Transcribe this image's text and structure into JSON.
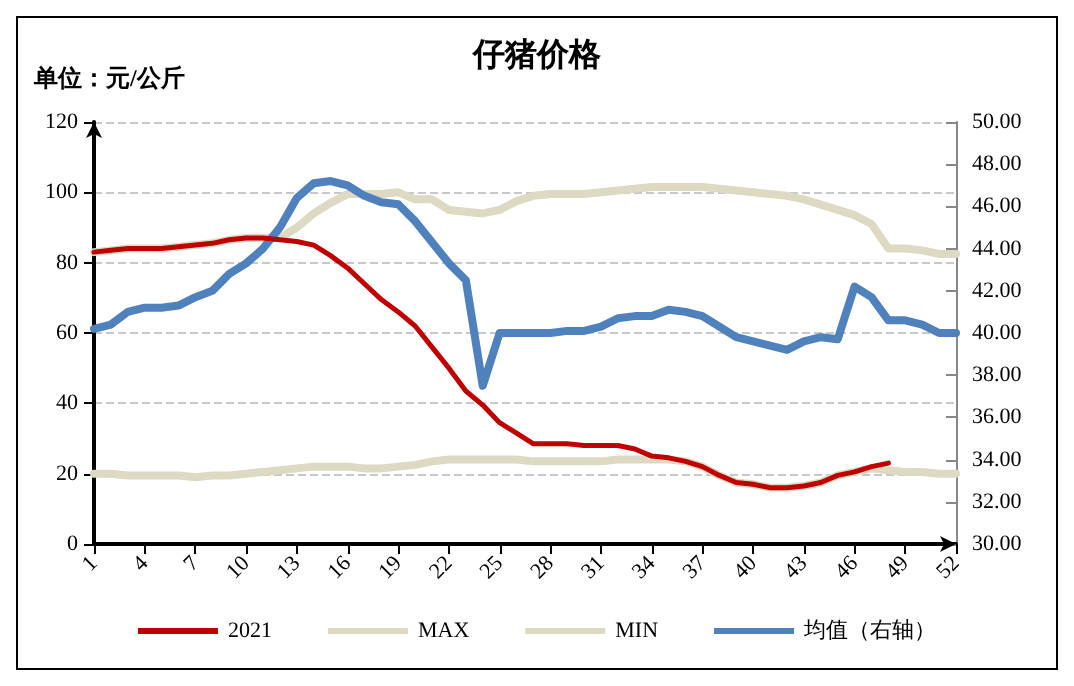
{
  "chart_data": {
    "type": "line",
    "title": "仔猪价格",
    "ylabel": "单位：元/公斤",
    "categories": [
      "1",
      null,
      null,
      "4",
      null,
      null,
      "7",
      null,
      null,
      "10",
      null,
      null,
      "13",
      null,
      null,
      "16",
      null,
      null,
      "19",
      null,
      null,
      "22",
      null,
      null,
      "25",
      null,
      null,
      "28",
      null,
      null,
      "31",
      null,
      null,
      "34",
      null,
      null,
      "37",
      null,
      null,
      "40",
      null,
      null,
      "43",
      null,
      null,
      "46",
      null,
      null,
      "49",
      null,
      null,
      "52"
    ],
    "series": [
      {
        "name": "2021",
        "color": "#c00000",
        "values": [
          83,
          83.5,
          84,
          84,
          84,
          84.5,
          85,
          85.5,
          86.5,
          87,
          87,
          86.5,
          86,
          85,
          82,
          78.5,
          74,
          69.5,
          66,
          62,
          56,
          50,
          43.5,
          39.5,
          34.5,
          31.5,
          28.5,
          28.5,
          28.5,
          28,
          28,
          28,
          27,
          25,
          24.5,
          23.5,
          22,
          19.5,
          17.5,
          17,
          16,
          16,
          16.5,
          17.5,
          19.5,
          20.5,
          22,
          23,
          null,
          null,
          null,
          null
        ]
      },
      {
        "name": "MAX",
        "color": "#ddd9c3",
        "values": [
          83,
          83.5,
          84,
          84,
          84,
          84.5,
          85,
          85.5,
          86.5,
          87,
          87,
          87,
          90,
          94,
          97,
          99.5,
          99.5,
          99.5,
          100,
          98,
          98,
          95,
          94.5,
          94,
          95,
          97.5,
          99,
          99.5,
          99.5,
          99.5,
          100,
          100.5,
          101,
          101.5,
          101.5,
          101.5,
          101.5,
          101,
          100.5,
          100,
          99.5,
          99,
          98,
          96.5,
          95,
          93.5,
          91,
          84,
          84,
          83.5,
          82.5,
          82.5
        ]
      },
      {
        "name": "MIN",
        "color": "#ddd9c3",
        "values": [
          20,
          20,
          19.5,
          19.5,
          19.5,
          19.5,
          19,
          19.5,
          19.5,
          20,
          20.5,
          21,
          21.5,
          22,
          22,
          22,
          21.5,
          21.5,
          22,
          22.5,
          23.5,
          24,
          24,
          24,
          24,
          24,
          23.5,
          23.5,
          23.5,
          23.5,
          23.5,
          24,
          24,
          24,
          24,
          23.5,
          22,
          19.5,
          17.5,
          17,
          16,
          16,
          16.5,
          17.5,
          19.5,
          20.5,
          21.5,
          21,
          20.5,
          20.5,
          20,
          20
        ]
      },
      {
        "name": "均值（右轴）",
        "color": "#4f81bd",
        "axis": "y2",
        "values": [
          40.2,
          40.4,
          41,
          41.2,
          41.2,
          41.3,
          41.7,
          42,
          42.8,
          43.3,
          44,
          45,
          46.4,
          47.1,
          47.2,
          47,
          46.5,
          46.2,
          46.1,
          45.3,
          44.3,
          43.3,
          42.5,
          37.5,
          40,
          40,
          40,
          40,
          40.1,
          40.1,
          40.3,
          40.7,
          40.8,
          40.8,
          41.1,
          41,
          40.8,
          40.3,
          39.8,
          39.6,
          39.4,
          39.2,
          39.6,
          39.8,
          39.7,
          42.2,
          41.7,
          40.6,
          40.6,
          40.4,
          40,
          40
        ]
      }
    ],
    "ylim": [
      0,
      120
    ],
    "yticks": [
      0,
      20,
      40,
      60,
      80,
      100,
      120
    ],
    "y2lim": [
      30,
      50
    ],
    "y2ticks": [
      {
        "value": 30,
        "label": "30.00"
      },
      {
        "value": 32,
        "label": "32.00"
      },
      {
        "value": 34,
        "label": "34.00"
      },
      {
        "value": 36,
        "label": "36.00"
      },
      {
        "value": 38,
        "label": "38.00"
      },
      {
        "value": 40,
        "label": "40.00"
      },
      {
        "value": 42,
        "label": "42.00"
      },
      {
        "value": 44,
        "label": "44.00"
      },
      {
        "value": 46,
        "label": "46.00"
      },
      {
        "value": 48,
        "label": "48.00"
      },
      {
        "value": 50,
        "label": "50.00"
      }
    ],
    "grid": "y",
    "legend": "bottom",
    "marker": "none",
    "line_style": "solid"
  }
}
